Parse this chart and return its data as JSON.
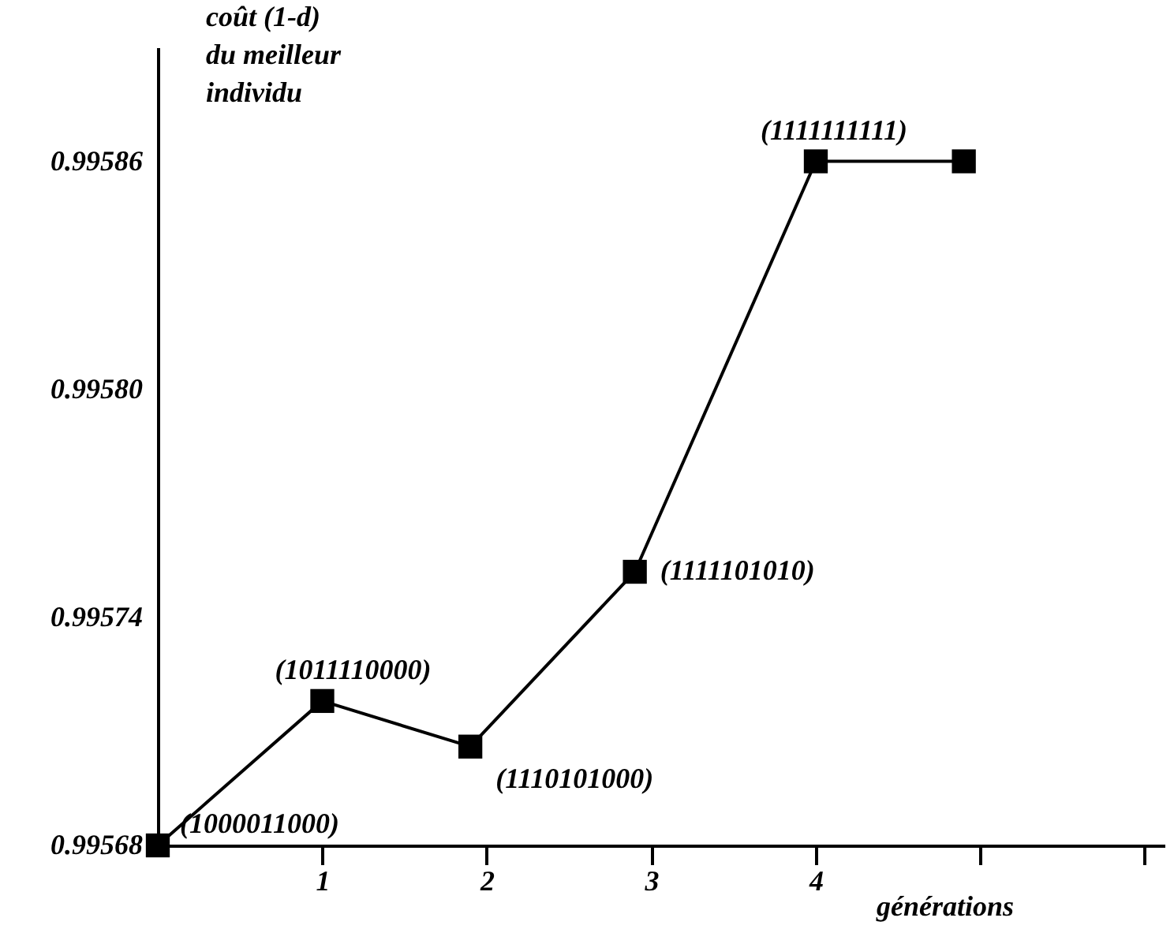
{
  "chart_data": {
    "type": "line",
    "xlabel": "générations",
    "ylabel": "coût  (1-d)\ndu meilleur\nindividu",
    "x": [
      0,
      1,
      1.9,
      2.9,
      4,
      4.9
    ],
    "series": [
      {
        "color": "#000000",
        "values": [
          0.99568,
          0.995718,
          0.995706,
          0.995752,
          0.99586,
          0.99586
        ]
      }
    ],
    "xlim": [
      0,
      6.12
    ],
    "xticks": [
      {
        "value": 1,
        "label": "1"
      },
      {
        "value": 2,
        "label": "2"
      },
      {
        "value": 3,
        "label": "3"
      },
      {
        "value": 4,
        "label": "4"
      },
      {
        "value": 5,
        "label": null
      },
      {
        "value": 6,
        "label": null
      }
    ],
    "ylim": [
      0.99568,
      0.99589
    ],
    "yticks": [
      {
        "value": 0.99568,
        "label": "0.99568"
      },
      {
        "value": 0.99574,
        "label": "0.99574"
      },
      {
        "value": 0.9958,
        "label": "0.99580"
      },
      {
        "value": 0.99586,
        "label": "0.99586"
      }
    ],
    "marker": "square",
    "line_style": "solid",
    "grid": false,
    "legend": false,
    "annotations": [
      {
        "text": "(1000011000)",
        "x": 0,
        "y": 0.99568
      },
      {
        "text": "(1011110000)",
        "x": 1,
        "y": 0.995718
      },
      {
        "text": "(1110101000)",
        "x": 1.9,
        "y": 0.995706
      },
      {
        "text": "(1111101010)",
        "x": 2.9,
        "y": 0.995752
      },
      {
        "text": "(1111111111)",
        "x": 4,
        "y": 0.99586
      }
    ]
  }
}
